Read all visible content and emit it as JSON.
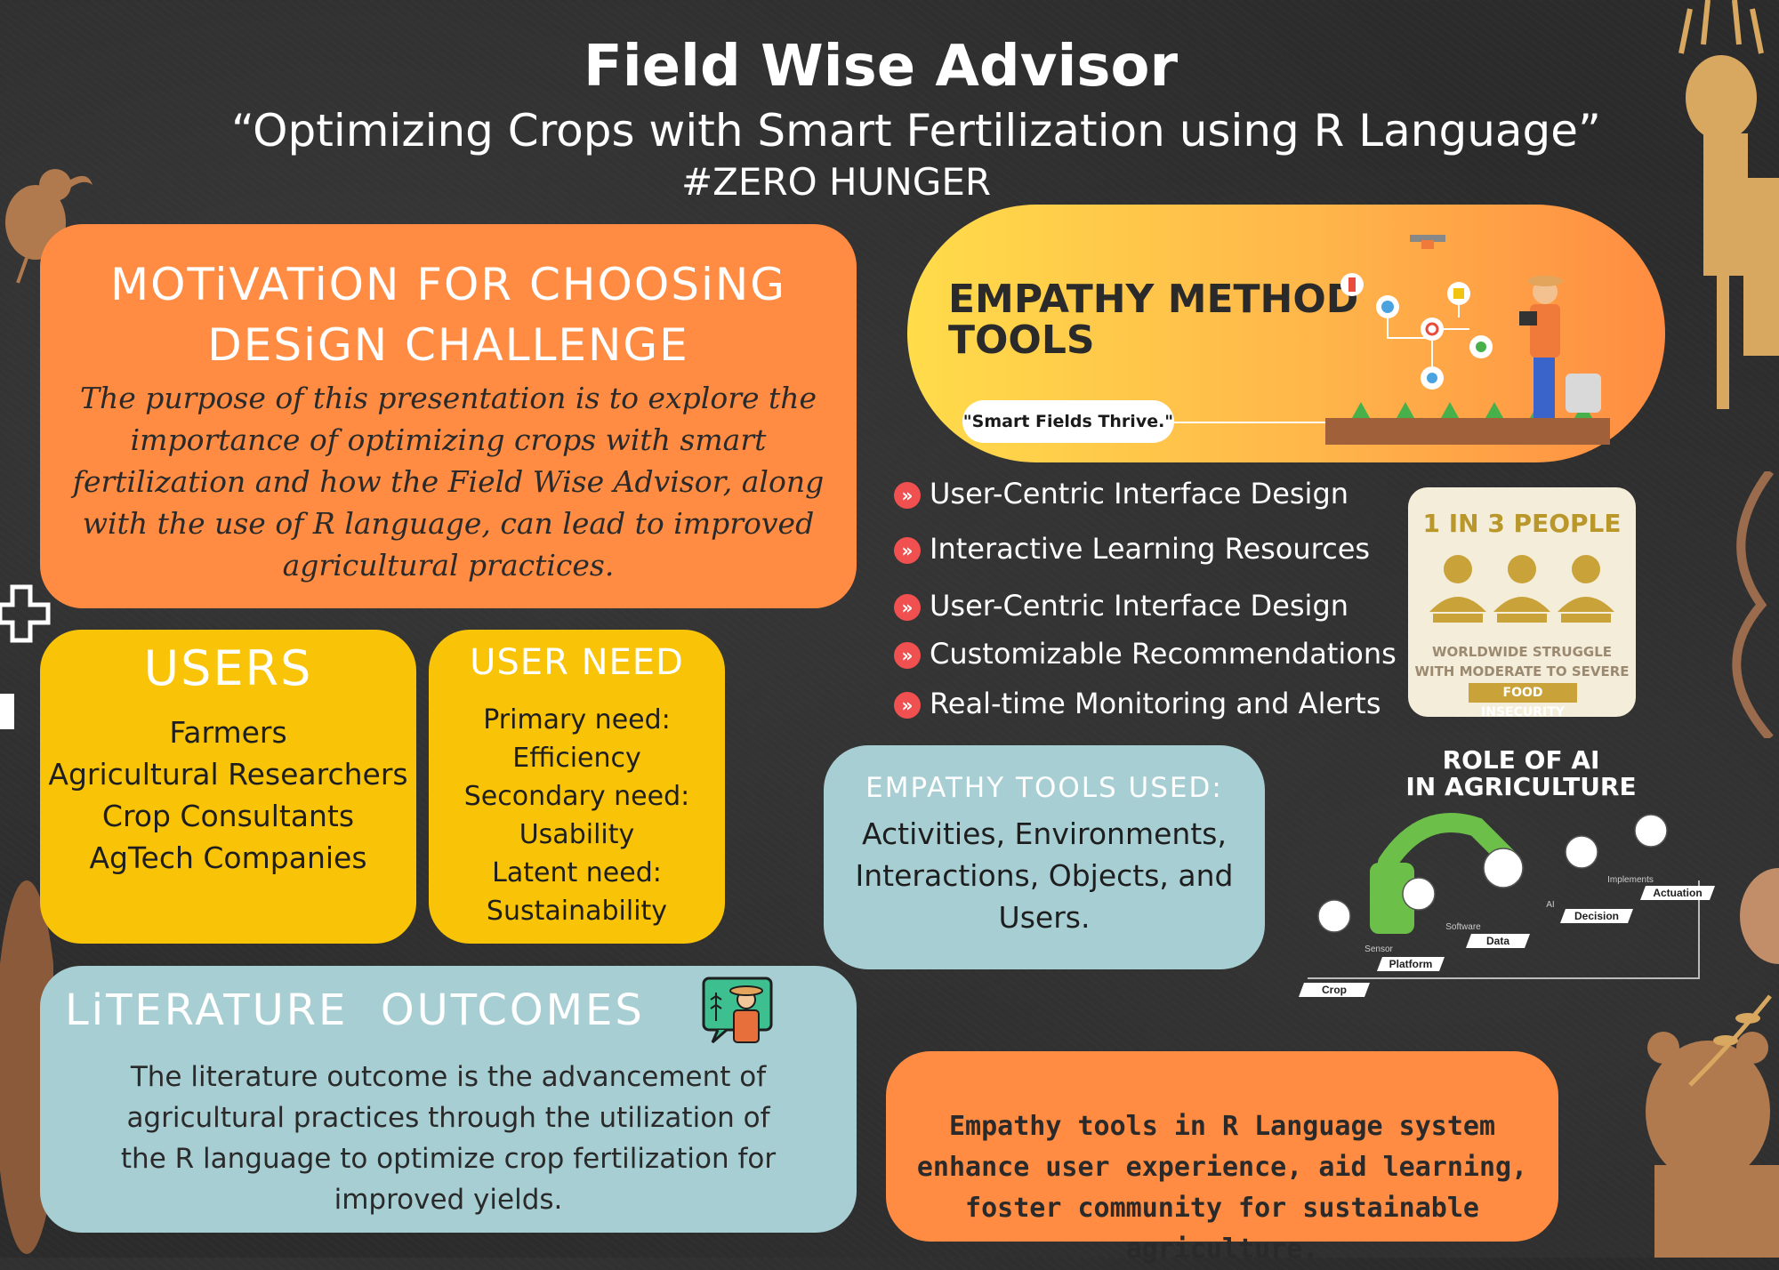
{
  "header": {
    "title": "Field Wise Advisor",
    "subtitle": "“Optimizing Crops with Smart Fertilization using R Language”",
    "hashtag": "#ZERO HUNGER"
  },
  "motivation": {
    "heading_line1": "MOTiVATiON FOR CHOOSiNG",
    "heading_line2": "DESiGN CHALLENGE",
    "body": "The purpose of this presentation is to explore the importance of optimizing crops with smart fertilization and how the Field Wise Advisor, along with the use of R language, can lead to improved agricultural practices."
  },
  "users": {
    "heading": "USERS",
    "items": [
      "Farmers",
      "Agricultural Researchers",
      "Crop Consultants",
      "AgTech Companies"
    ]
  },
  "user_need": {
    "heading": "USER NEED",
    "lines": [
      "Primary need:",
      "Efficiency",
      "Secondary need:",
      "Usability",
      "Latent need:",
      "Sustainability"
    ]
  },
  "literature": {
    "heading": "LiTERATURE  OUTCOMES",
    "body": "The literature outcome is the advancement of agricultural practices through the utilization of the R language to optimize crop fertilization for improved yields."
  },
  "empathy_method": {
    "heading_line1": "EMPATHY METHOD",
    "heading_line2": "TOOLS",
    "tagline": "\"Smart Fields Thrive.\""
  },
  "tools_list": [
    "User-Centric Interface Design",
    "Interactive Learning Resources",
    "User-Centric Interface Design",
    "Customizable Recommendations",
    "Real-time Monitoring and Alerts"
  ],
  "stat": {
    "head": "1 IN 3 PEOPLE",
    "line1": "WORLDWIDE STRUGGLE",
    "line2": "WITH MODERATE TO SEVERE",
    "line3": "FOOD INSECURITY"
  },
  "empathy_tools_used": {
    "heading": "EMPATHY TOOLS USED:",
    "body": "Activities, Environments, Interactions, Objects, and Users."
  },
  "ai": {
    "title_line1": "ROLE OF AI",
    "title_line2": "IN AGRICULTURE",
    "steps": [
      "Crop",
      "Platform",
      "Data",
      "Decision",
      "Actuation"
    ],
    "connectors": [
      "Sensor",
      "Software",
      "AI",
      "Implements"
    ]
  },
  "summary": {
    "body": "Empathy tools in R Language system enhance user experience, aid learning, foster community for sustainable agriculture."
  },
  "colors": {
    "orange": "#ff8c42",
    "yellow": "#f9c307",
    "teal": "#a7ced3",
    "background": "#2b2b2b"
  }
}
